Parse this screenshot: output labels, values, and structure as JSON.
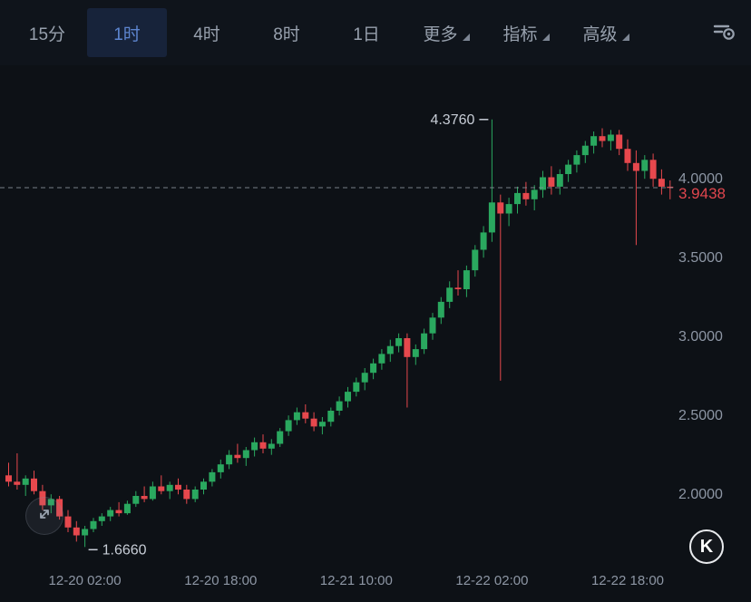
{
  "toolbar": {
    "tabs": [
      {
        "label": "15分",
        "name": "tab-15m",
        "selected": false
      },
      {
        "label": "1时",
        "name": "tab-1h",
        "selected": true
      },
      {
        "label": "4时",
        "name": "tab-4h",
        "selected": false
      },
      {
        "label": "8时",
        "name": "tab-8h",
        "selected": false
      },
      {
        "label": "1日",
        "name": "tab-1d",
        "selected": false
      }
    ],
    "menus": [
      {
        "label": "更多",
        "name": "menu-more"
      },
      {
        "label": "指标",
        "name": "menu-indicators"
      },
      {
        "label": "高级",
        "name": "menu-advanced"
      }
    ],
    "settings_icon": "chart-settings-icon"
  },
  "colors": {
    "up": "#2aa85f",
    "down": "#e6484d",
    "price_label": "#e0464e",
    "axis_text": "#8d96a4",
    "annotation_text": "#c7cdd6",
    "dashed_line": "#8a919d",
    "selected_tab_text": "#5d85cf",
    "selected_tab_bg": "#17233a"
  },
  "chart_data": {
    "type": "candlestick",
    "interval": "1h",
    "up_color": "#2aa85f",
    "down_color": "#e6484d",
    "current_price": 3.9438,
    "current_price_label": "3.9438",
    "high_annotation": {
      "label": "4.3760",
      "value": 4.376,
      "index": 57
    },
    "low_annotation": {
      "label": "1.6660",
      "value": 1.666,
      "index": 9
    },
    "y_ticks": [
      "4.0000",
      "3.5000",
      "3.0000",
      "2.5000",
      "2.0000"
    ],
    "y_tick_values": [
      4.0,
      3.5,
      3.0,
      2.5,
      2.0
    ],
    "x_tick_labels": [
      "12-20 02:00",
      "12-20 18:00",
      "12-21 10:00",
      "12-22 02:00",
      "12-22 18:00"
    ],
    "x_tick_indices": [
      9,
      25,
      41,
      57,
      73
    ],
    "candles": [
      [
        2.12,
        2.2,
        2.05,
        2.08
      ],
      [
        2.08,
        2.26,
        2.03,
        2.06
      ],
      [
        2.06,
        2.12,
        1.99,
        2.1
      ],
      [
        2.1,
        2.15,
        2.0,
        2.02
      ],
      [
        2.02,
        2.06,
        1.9,
        1.93
      ],
      [
        1.93,
        2.0,
        1.88,
        1.97
      ],
      [
        1.97,
        1.99,
        1.84,
        1.86
      ],
      [
        1.86,
        1.9,
        1.76,
        1.79
      ],
      [
        1.79,
        1.83,
        1.7,
        1.74
      ],
      [
        1.74,
        1.8,
        1.666,
        1.78
      ],
      [
        1.78,
        1.85,
        1.76,
        1.83
      ],
      [
        1.83,
        1.88,
        1.8,
        1.86
      ],
      [
        1.86,
        1.92,
        1.83,
        1.9
      ],
      [
        1.9,
        1.95,
        1.86,
        1.88
      ],
      [
        1.88,
        1.96,
        1.87,
        1.94
      ],
      [
        1.94,
        2.02,
        1.92,
        1.99
      ],
      [
        1.99,
        2.05,
        1.95,
        1.97
      ],
      [
        1.97,
        2.08,
        1.96,
        2.05
      ],
      [
        2.05,
        2.12,
        2.0,
        2.02
      ],
      [
        2.02,
        2.08,
        1.97,
        2.06
      ],
      [
        2.06,
        2.1,
        2.0,
        2.03
      ],
      [
        2.03,
        2.06,
        1.94,
        1.97
      ],
      [
        1.97,
        2.05,
        1.95,
        2.03
      ],
      [
        2.03,
        2.1,
        2.0,
        2.08
      ],
      [
        2.08,
        2.16,
        2.05,
        2.14
      ],
      [
        2.14,
        2.22,
        2.1,
        2.19
      ],
      [
        2.19,
        2.28,
        2.16,
        2.25
      ],
      [
        2.25,
        2.32,
        2.2,
        2.23
      ],
      [
        2.23,
        2.3,
        2.18,
        2.28
      ],
      [
        2.28,
        2.36,
        2.24,
        2.33
      ],
      [
        2.33,
        2.38,
        2.26,
        2.29
      ],
      [
        2.29,
        2.35,
        2.25,
        2.32
      ],
      [
        2.32,
        2.42,
        2.3,
        2.4
      ],
      [
        2.4,
        2.5,
        2.37,
        2.47
      ],
      [
        2.47,
        2.55,
        2.44,
        2.52
      ],
      [
        2.52,
        2.57,
        2.45,
        2.48
      ],
      [
        2.48,
        2.52,
        2.4,
        2.43
      ],
      [
        2.43,
        2.49,
        2.38,
        2.46
      ],
      [
        2.46,
        2.55,
        2.43,
        2.53
      ],
      [
        2.53,
        2.62,
        2.5,
        2.59
      ],
      [
        2.59,
        2.68,
        2.55,
        2.65
      ],
      [
        2.65,
        2.74,
        2.62,
        2.71
      ],
      [
        2.71,
        2.8,
        2.66,
        2.77
      ],
      [
        2.77,
        2.86,
        2.73,
        2.83
      ],
      [
        2.83,
        2.92,
        2.79,
        2.89
      ],
      [
        2.89,
        2.98,
        2.84,
        2.94
      ],
      [
        2.94,
        3.02,
        2.9,
        2.99
      ],
      [
        2.99,
        3.02,
        2.55,
        2.87
      ],
      [
        2.87,
        2.95,
        2.82,
        2.92
      ],
      [
        2.92,
        3.05,
        2.89,
        3.02
      ],
      [
        3.02,
        3.15,
        2.98,
        3.12
      ],
      [
        3.12,
        3.25,
        3.08,
        3.22
      ],
      [
        3.22,
        3.35,
        3.18,
        3.31
      ],
      [
        3.31,
        3.42,
        3.26,
        3.3
      ],
      [
        3.3,
        3.45,
        3.25,
        3.42
      ],
      [
        3.42,
        3.58,
        3.38,
        3.55
      ],
      [
        3.55,
        3.7,
        3.5,
        3.66
      ],
      [
        3.66,
        4.376,
        3.6,
        3.85
      ],
      [
        3.85,
        3.9,
        2.72,
        3.78
      ],
      [
        3.78,
        3.88,
        3.7,
        3.84
      ],
      [
        3.84,
        3.95,
        3.78,
        3.91
      ],
      [
        3.91,
        3.98,
        3.83,
        3.87
      ],
      [
        3.87,
        3.96,
        3.8,
        3.93
      ],
      [
        3.93,
        4.05,
        3.88,
        4.01
      ],
      [
        4.01,
        4.08,
        3.9,
        3.95
      ],
      [
        3.95,
        4.06,
        3.9,
        4.03
      ],
      [
        4.03,
        4.12,
        3.98,
        4.09
      ],
      [
        4.09,
        4.18,
        4.04,
        4.15
      ],
      [
        4.15,
        4.24,
        4.1,
        4.21
      ],
      [
        4.21,
        4.3,
        4.16,
        4.27
      ],
      [
        4.27,
        4.32,
        4.2,
        4.24
      ],
      [
        4.24,
        4.31,
        4.18,
        4.28
      ],
      [
        4.28,
        4.31,
        4.15,
        4.19
      ],
      [
        4.19,
        4.25,
        4.05,
        4.1
      ],
      [
        4.1,
        4.18,
        3.58,
        4.05
      ],
      [
        4.05,
        4.15,
        4.0,
        4.12
      ],
      [
        4.12,
        4.16,
        3.95,
        4.0
      ],
      [
        4.0,
        4.06,
        3.9,
        3.95
      ],
      [
        3.95,
        3.99,
        3.87,
        3.9438
      ]
    ]
  },
  "k_badge": {
    "label": "K"
  }
}
